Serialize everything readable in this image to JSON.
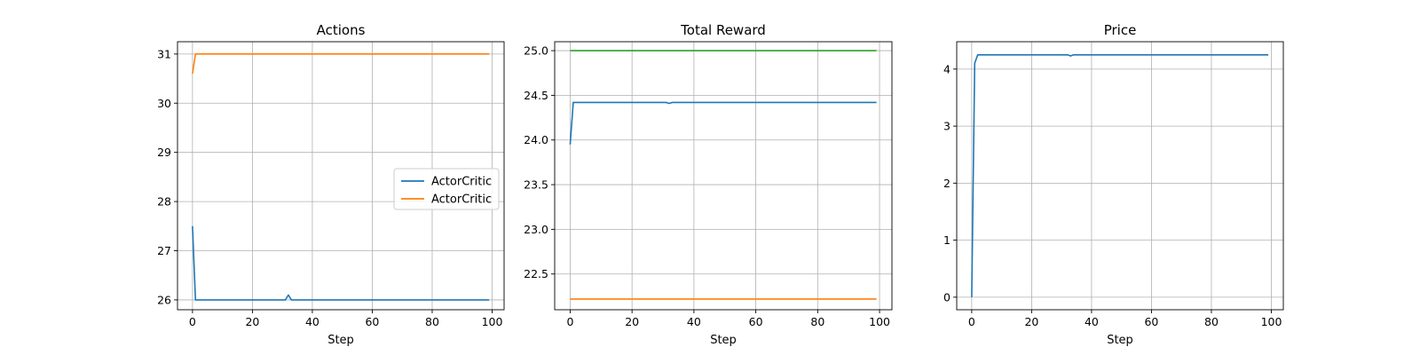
{
  "chart_data": [
    {
      "type": "line",
      "title": "Actions",
      "xlabel": "Step",
      "ylabel": "",
      "xlim": [
        -5,
        104
      ],
      "ylim": [
        25.8,
        31.25
      ],
      "xticks": [
        0,
        20,
        40,
        60,
        80,
        100
      ],
      "yticks": [
        26,
        27,
        28,
        29,
        30,
        31
      ],
      "grid": true,
      "legend": {
        "placement": "center-right",
        "entries": [
          "ActorCritic",
          "ActorCritic"
        ]
      },
      "series": [
        {
          "name": "ActorCritic",
          "color": "#1f77b4",
          "x": [
            0,
            1,
            2,
            31,
            32,
            33,
            99
          ],
          "y": [
            27.5,
            26.0,
            26.0,
            26.0,
            26.1,
            26.0,
            26.0
          ]
        },
        {
          "name": "ActorCritic",
          "color": "#ff7f0e",
          "x": [
            0,
            1,
            2,
            99
          ],
          "y": [
            30.6,
            31.0,
            31.0,
            31.0
          ]
        }
      ]
    },
    {
      "type": "line",
      "title": "Total Reward",
      "xlabel": "Step",
      "ylabel": "",
      "xlim": [
        -5,
        104
      ],
      "ylim": [
        22.1,
        25.1
      ],
      "xticks": [
        0,
        20,
        40,
        60,
        80,
        100
      ],
      "yticks": [
        22.5,
        23.0,
        23.5,
        24.0,
        24.5,
        25.0
      ],
      "ytick_labels": [
        "22.5",
        "23.0",
        "23.5",
        "24.0",
        "24.5",
        "25.0"
      ],
      "grid": true,
      "series": [
        {
          "color": "#1f77b4",
          "x": [
            0,
            1,
            2,
            31,
            32,
            33,
            99
          ],
          "y": [
            23.95,
            24.42,
            24.42,
            24.42,
            24.41,
            24.42,
            24.42
          ]
        },
        {
          "color": "#ff7f0e",
          "x": [
            0,
            99
          ],
          "y": [
            22.22,
            22.22
          ]
        },
        {
          "color": "#2ca02c",
          "x": [
            0,
            99
          ],
          "y": [
            25.0,
            25.0
          ]
        }
      ]
    },
    {
      "type": "line",
      "title": "Price",
      "xlabel": "Step",
      "ylabel": "",
      "xlim": [
        -5,
        104
      ],
      "ylim": [
        -0.22,
        4.48
      ],
      "xticks": [
        0,
        20,
        40,
        60,
        80,
        100
      ],
      "yticks": [
        0,
        1,
        2,
        3,
        4
      ],
      "grid": true,
      "series": [
        {
          "color": "#1f77b4",
          "x": [
            0,
            1,
            2,
            32,
            33,
            34,
            99
          ],
          "y": [
            0.0,
            4.1,
            4.25,
            4.25,
            4.23,
            4.25,
            4.25
          ]
        }
      ]
    }
  ]
}
